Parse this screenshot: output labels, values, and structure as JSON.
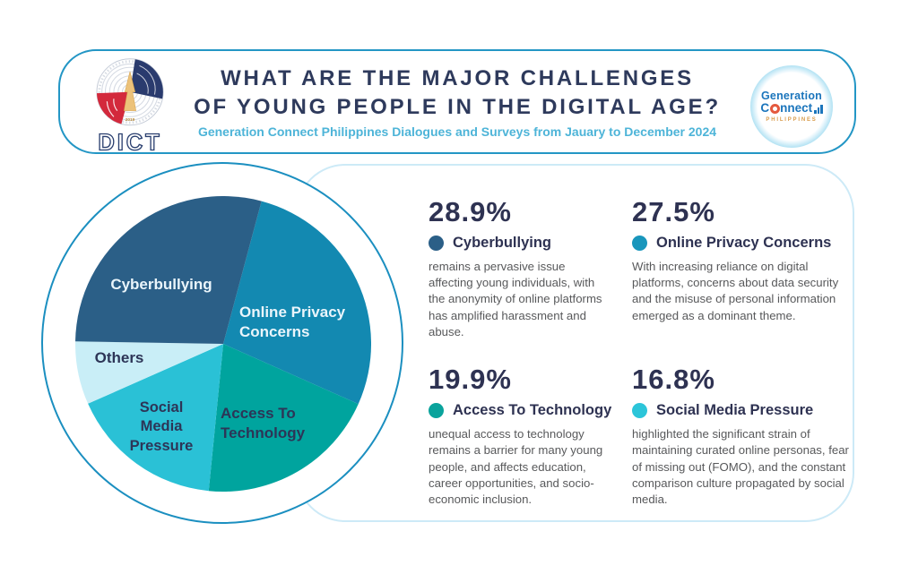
{
  "page": {
    "background": "#ffffff"
  },
  "header": {
    "title_line1": "WHAT ARE THE MAJOR CHALLENGES",
    "title_line2": "OF YOUNG PEOPLE IN THE DIGITAL AGE?",
    "subtitle": "Generation Connect Philippines Dialogues and Surveys from Jauary to December 2024",
    "title_color": "#2e3a5c",
    "subtitle_color": "#4db4d8",
    "border_color": "#2396c5",
    "dict_logo": {
      "wordmark": "DICT",
      "seal_year": "2019"
    },
    "gc_logo": {
      "word1": "Generation",
      "word2_c": "C",
      "word2_rest": "nnect",
      "word3": "PHILIPPINES"
    }
  },
  "chart_data": {
    "type": "pie",
    "title": "What Are The Major Challenges Of Young People In The Digital Age?",
    "start_angle_from_top_deg": 15,
    "slices": [
      {
        "label": "Online Privacy Concerns",
        "value": 27.5,
        "color": "#1389b1",
        "text_color": "#eaf5fb"
      },
      {
        "label": "Access To Technology",
        "value": 19.9,
        "color": "#00a49e",
        "text_color": "#2d3557"
      },
      {
        "label": "Social Media Pressure",
        "value": 16.8,
        "color": "#2ac1d6",
        "text_color": "#2d3557"
      },
      {
        "label": "Others",
        "value": 6.9,
        "color": "#c9eef7",
        "text_color": "#2d3557"
      },
      {
        "label": "Cyberbullying",
        "value": 28.9,
        "color": "#2b5f87",
        "text_color": "#eaf5fb"
      }
    ],
    "legend_position": "right-panel",
    "grid": false
  },
  "panel": {
    "border_color": "#cdeaf7"
  },
  "pie_ring": {
    "border_color": "#1b8fc0"
  },
  "stats": [
    {
      "percent": "28.9%",
      "label": "Cyberbullying",
      "color": "#2b5f87",
      "description": "remains a pervasive issue affecting young individuals, with the anonymity of online platforms has amplified harassment and abuse."
    },
    {
      "percent": "27.5%",
      "label": "Online Privacy Concerns",
      "color": "#1996bc",
      "description": "With increasing reliance on digital platforms, concerns about data security and the misuse of personal information emerged as a dominant theme."
    },
    {
      "percent": "19.9%",
      "label": "Access To Technology",
      "color": "#0aa39c",
      "description": "unequal access to technology remains a barrier for many young people, and affects education, career opportunities, and socio-economic inclusion."
    },
    {
      "percent": "16.8%",
      "label": "Social Media Pressure",
      "color": "#2cc5d9",
      "description": "highlighted the significant strain of maintaining curated online personas, fear of missing out (FOMO), and the constant comparison culture propagated by social media."
    }
  ]
}
